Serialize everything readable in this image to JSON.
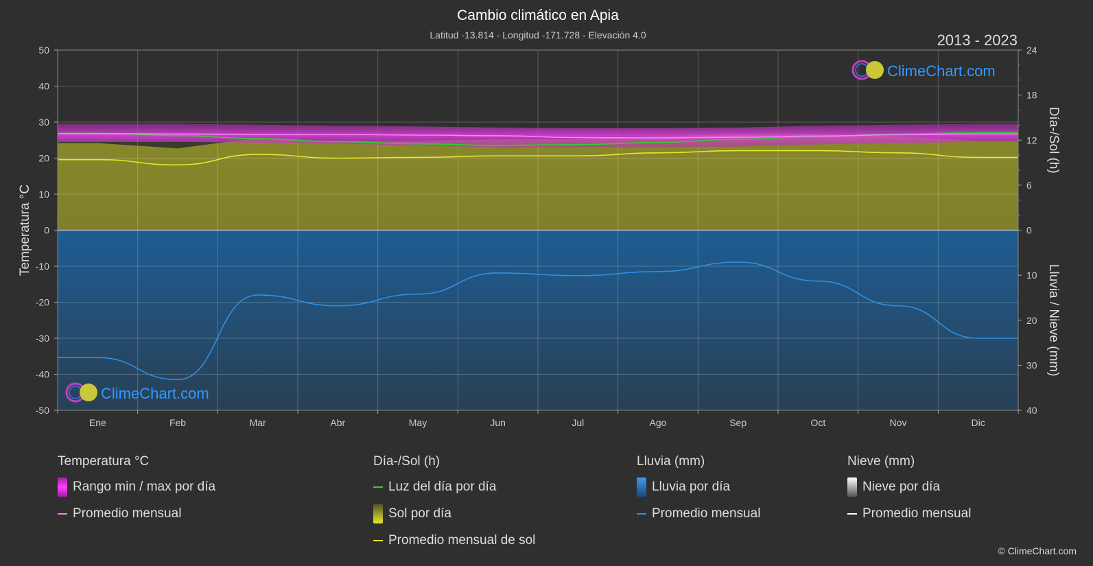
{
  "title": "Cambio climático en Apia",
  "subtitle": "Latitud -13.814 - Longitud -171.728 - Elevación 4.0",
  "year_range": "2013 - 2023",
  "watermark_text": "ClimeChart.com",
  "copyright": "© ClimeChart.com",
  "colors": {
    "background": "#2f2f2f",
    "temp_range": "#e040e0",
    "temp_avg": "#ff80ff",
    "daylight": "#33cc33",
    "sunshine": "#9a9a30",
    "sunshine_avg": "#e6e62e",
    "rain": "#2277bb",
    "rain_avg": "#2f8fe0",
    "snow_avg": "#ffffff",
    "watermark": "#3399ff"
  },
  "chart_data": {
    "type": "area",
    "categories": [
      "Ene",
      "Feb",
      "Mar",
      "Abr",
      "May",
      "Jun",
      "Jul",
      "Ago",
      "Sep",
      "Oct",
      "Nov",
      "Dic"
    ],
    "axes": {
      "left": {
        "label": "Temperatura °C",
        "min": -50,
        "max": 50,
        "ticks": [
          "50",
          "40",
          "30",
          "20",
          "10",
          "0",
          "-10",
          "-20",
          "-30",
          "-40",
          "-50"
        ]
      },
      "right_top": {
        "label": "Día-/Sol (h)",
        "min": 0,
        "max": 24,
        "ticks": [
          "24",
          "18",
          "12",
          "6",
          "0"
        ]
      },
      "right_bottom": {
        "label": "Lluvia / Nieve (mm)",
        "min": 0,
        "max": 40,
        "ticks": [
          "0",
          "10",
          "20",
          "30",
          "40"
        ]
      }
    },
    "grid": true,
    "series": [
      {
        "name": "Rango min / max por día",
        "kind": "temp_range",
        "min": [
          24.5,
          24.5,
          24.3,
          24.0,
          23.5,
          23.0,
          23.0,
          23.0,
          23.2,
          23.8,
          24.2,
          24.5
        ],
        "max": [
          29.5,
          29.5,
          29.3,
          29.0,
          28.8,
          28.5,
          28.3,
          28.3,
          28.5,
          29.0,
          29.3,
          29.5
        ]
      },
      {
        "name": "Promedio mensual",
        "kind": "temp_avg",
        "values": [
          26.8,
          26.7,
          26.6,
          26.6,
          26.4,
          26.2,
          25.7,
          25.6,
          25.8,
          26.1,
          26.5,
          26.7
        ]
      },
      {
        "name": "Luz del día por día",
        "kind": "daylight",
        "values": [
          12.9,
          12.6,
          12.2,
          11.8,
          11.5,
          11.3,
          11.4,
          11.7,
          12.1,
          12.5,
          12.8,
          13.0
        ]
      },
      {
        "name": "Promedio mensual de sol",
        "kind": "sunshine_avg",
        "values": [
          9.4,
          8.7,
          10.1,
          9.6,
          9.7,
          9.9,
          9.9,
          10.3,
          10.6,
          10.6,
          10.3,
          9.7
        ]
      },
      {
        "name": "Promedio mensual",
        "kind": "rain_avg",
        "values": [
          28.3,
          33.2,
          14.4,
          16.8,
          14.2,
          9.5,
          10.1,
          9.2,
          7.1,
          11.3,
          16.8,
          24.0
        ]
      }
    ],
    "legend": {
      "groups": [
        {
          "title": "Temperatura °C",
          "items": [
            {
              "label": "Rango min / max por día",
              "swatch": "box",
              "color": "#e040e0"
            },
            {
              "label": "Promedio mensual",
              "swatch": "line",
              "color": "#ff80ff"
            }
          ]
        },
        {
          "title": "Día-/Sol (h)",
          "items": [
            {
              "label": "Luz del día por día",
              "swatch": "line",
              "color": "#33cc33"
            },
            {
              "label": "Sol por día",
              "swatch": "box",
              "color": "#c8c83a"
            },
            {
              "label": "Promedio mensual de sol",
              "swatch": "line",
              "color": "#e6e62e"
            }
          ]
        },
        {
          "title": "Lluvia (mm)",
          "items": [
            {
              "label": "Lluvia por día",
              "swatch": "box",
              "color": "#2f8fe0"
            },
            {
              "label": "Promedio mensual",
              "swatch": "line",
              "color": "#2f8fe0"
            }
          ]
        },
        {
          "title": "Nieve (mm)",
          "items": [
            {
              "label": "Nieve por día",
              "swatch": "box",
              "color": "#dddddd"
            },
            {
              "label": "Promedio mensual",
              "swatch": "line",
              "color": "#ffffff"
            }
          ]
        }
      ],
      "placement": "bottom"
    }
  }
}
